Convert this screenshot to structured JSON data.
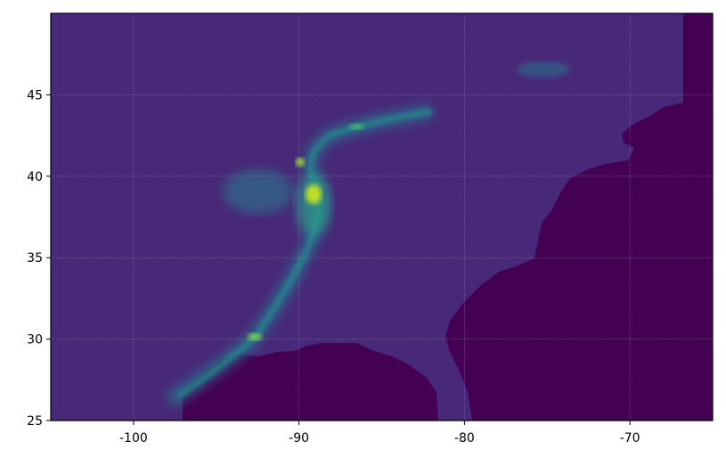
{
  "chart_data": {
    "type": "heatmap",
    "title": "",
    "xlabel": "",
    "ylabel": "",
    "xlim": [
      -105,
      -65
    ],
    "ylim": [
      25,
      50
    ],
    "x_ticks": [
      "-100",
      "-90",
      "-80",
      "-70"
    ],
    "y_ticks": [
      "25",
      "30",
      "35",
      "40",
      "45"
    ],
    "x_tick_values": [
      -100,
      -90,
      -80,
      -70
    ],
    "y_tick_values": [
      25,
      30,
      35,
      40,
      45
    ],
    "grid": true,
    "colormap": "viridis",
    "colors": {
      "background": "#482878",
      "masked": "#440154",
      "mid": "#21908c",
      "high": "#bddf26"
    }
  }
}
